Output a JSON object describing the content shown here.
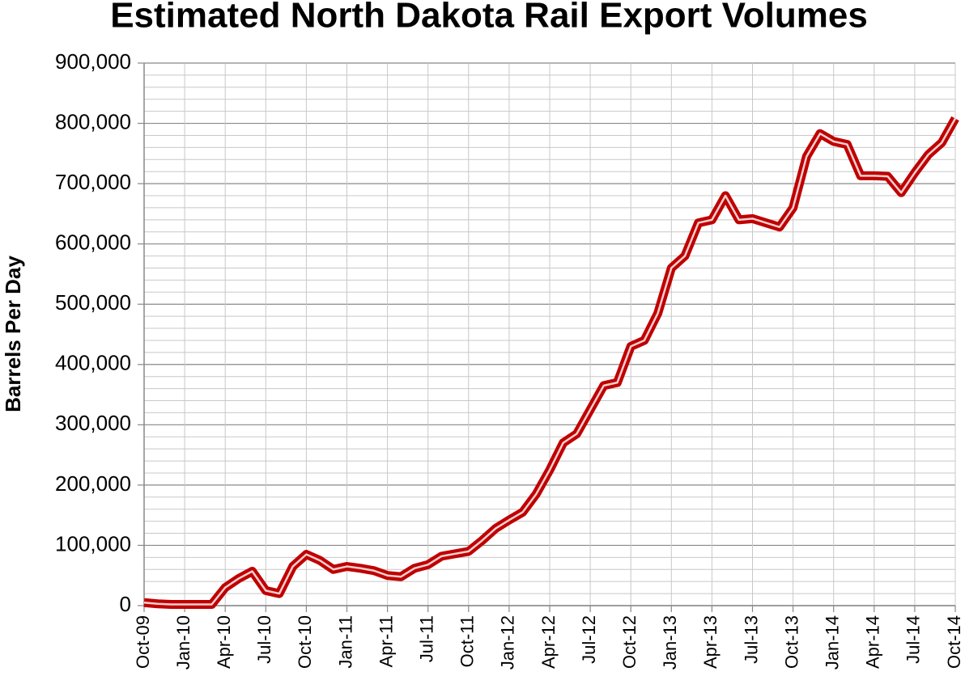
{
  "chart_data": {
    "type": "line",
    "title": "Estimated North Dakota Rail Export Volumes",
    "y_label": "Barrels Per Day",
    "categories": [
      "Oct-09",
      null,
      null,
      "Jan-10",
      null,
      null,
      "Apr-10",
      null,
      null,
      "Jul-10",
      null,
      null,
      "Oct-10",
      null,
      null,
      "Jan-11",
      null,
      null,
      "Apr-11",
      null,
      null,
      "Jul-11",
      null,
      null,
      "Oct-11",
      null,
      null,
      "Jan-12",
      null,
      null,
      "Apr-12",
      null,
      null,
      "Jul-12",
      null,
      null,
      "Oct-12",
      null,
      null,
      "Jan-13",
      null,
      null,
      "Apr-13",
      null,
      null,
      "Jul-13",
      null,
      null,
      "Oct-13",
      null,
      null,
      "Jan-14",
      null,
      null,
      "Apr-14",
      null,
      null,
      "Jul-14",
      null,
      null,
      "Oct-14"
    ],
    "series": [
      {
        "name": "Rail Export Volumes",
        "color": "#c00000",
        "values": [
          5000,
          3000,
          2000,
          2000,
          2000,
          2000,
          30000,
          45000,
          57000,
          25000,
          20000,
          65000,
          85000,
          75000,
          60000,
          65000,
          62000,
          58000,
          50000,
          48000,
          62000,
          68000,
          82000,
          86000,
          90000,
          108000,
          128000,
          142000,
          155000,
          185000,
          225000,
          270000,
          285000,
          325000,
          365000,
          370000,
          430000,
          440000,
          485000,
          560000,
          580000,
          635000,
          640000,
          680000,
          640000,
          642000,
          635000,
          628000,
          660000,
          745000,
          783000,
          770000,
          765000,
          713000,
          713000,
          712000,
          685000,
          718000,
          748000,
          768000,
          808000
        ]
      }
    ],
    "ylim": [
      0,
      900000
    ],
    "yticks": [
      0,
      {
        "value": 100000,
        "label": "100,000"
      },
      {
        "value": 200000,
        "label": "200,000"
      },
      {
        "value": 300000,
        "label": "300,000"
      },
      {
        "value": 400000,
        "label": "400,000"
      },
      {
        "value": 500000,
        "label": "500,000"
      },
      {
        "value": 600000,
        "label": "600,000"
      },
      {
        "value": 700000,
        "label": "700,000"
      },
      {
        "value": 800000,
        "label": "800,000"
      },
      {
        "value": 900000,
        "label": "900,000"
      }
    ],
    "minor_yticks": [
      20000,
      40000,
      60000,
      80000,
      120000,
      140000,
      160000,
      180000,
      220000,
      240000,
      260000,
      280000,
      320000,
      340000,
      360000,
      380000,
      420000,
      440000,
      460000,
      480000,
      520000,
      540000,
      560000,
      580000,
      620000,
      640000,
      660000,
      680000,
      720000,
      740000,
      760000,
      780000,
      820000,
      840000,
      860000,
      880000
    ],
    "grid": true
  }
}
